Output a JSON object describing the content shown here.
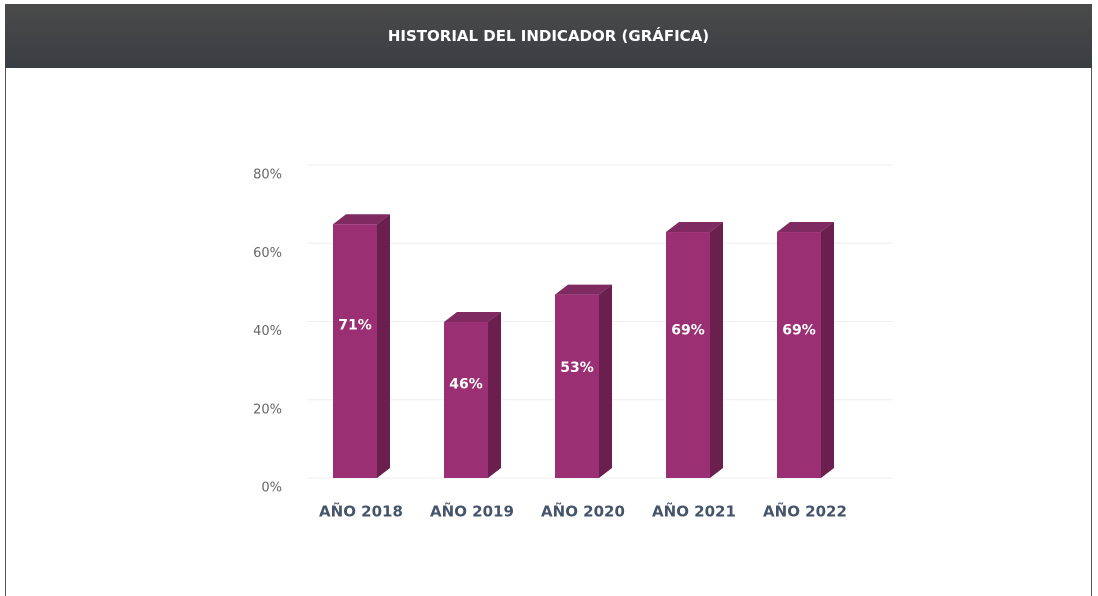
{
  "header": {
    "title": "HISTORIAL DEL INDICADOR (GRÁFICA)"
  },
  "chart_data": {
    "type": "bar",
    "categories": [
      "AÑO 2018",
      "AÑO 2019",
      "AÑO 2020",
      "AÑO 2021",
      "AÑO 2022"
    ],
    "values": [
      71,
      46,
      53,
      69,
      69
    ],
    "value_labels": [
      "71%",
      "46%",
      "53%",
      "69%",
      "69%"
    ],
    "color": "#9b2f74",
    "ylim": [
      0,
      80
    ],
    "yticks": [
      {
        "value": 0,
        "label": "0%"
      },
      {
        "value": 20,
        "label": "20%"
      },
      {
        "value": 40,
        "label": "40%"
      },
      {
        "value": 60,
        "label": "60%"
      },
      {
        "value": 80,
        "label": "80%"
      }
    ],
    "grid": true
  }
}
